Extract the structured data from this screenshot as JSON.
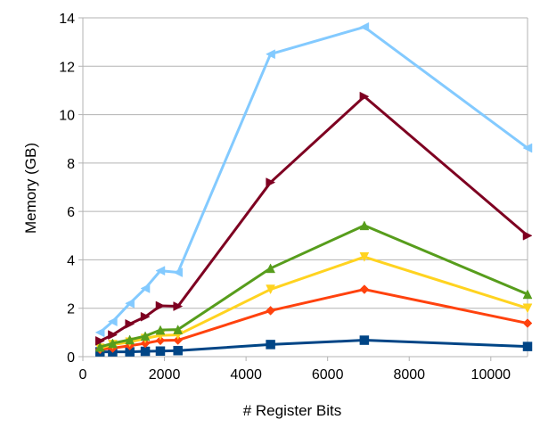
{
  "chart_data": {
    "type": "line",
    "title": "",
    "xlabel": "# Register Bits",
    "ylabel": "Memory (GB)",
    "xlim": [
      0,
      10900
    ],
    "ylim": [
      0,
      14
    ],
    "x_ticks": [
      0,
      2000,
      4000,
      6000,
      8000,
      10000
    ],
    "y_ticks": [
      0,
      2,
      4,
      6,
      8,
      10,
      12,
      14
    ],
    "x_tick_labels": [
      "0",
      "2000",
      "4000",
      "6000",
      "8000",
      "10000"
    ],
    "y_tick_labels": [
      "0",
      "2",
      "4",
      "6",
      "8",
      "10",
      "12",
      "14"
    ],
    "grid": "horizontal",
    "legend": "none",
    "x": [
      420,
      730,
      1150,
      1530,
      1900,
      2330,
      4600,
      6900,
      10900
    ],
    "series": [
      {
        "color": "#004586",
        "marker": "square",
        "values": [
          0.2,
          0.2,
          0.2,
          0.22,
          0.23,
          0.25,
          0.5,
          0.68,
          0.42
        ]
      },
      {
        "color": "#ff420e",
        "marker": "diamond",
        "values": [
          0.3,
          0.35,
          0.45,
          0.55,
          0.67,
          0.68,
          1.9,
          2.78,
          1.38
        ]
      },
      {
        "color": "#ffd320",
        "marker": "triangle-down",
        "values": [
          0.35,
          0.5,
          0.6,
          0.75,
          0.88,
          0.9,
          2.78,
          4.12,
          2.0
        ]
      },
      {
        "color": "#579d1c",
        "marker": "triangle-up",
        "values": [
          0.4,
          0.55,
          0.7,
          0.85,
          1.1,
          1.12,
          3.65,
          5.42,
          2.58
        ]
      },
      {
        "color": "#7e0021",
        "marker": "triangle-right",
        "values": [
          0.65,
          0.9,
          1.35,
          1.65,
          2.1,
          2.08,
          7.2,
          10.75,
          5.0
        ]
      },
      {
        "color": "#83caff",
        "marker": "triangle-left",
        "values": [
          1.0,
          1.45,
          2.2,
          2.82,
          3.55,
          3.48,
          12.5,
          13.62,
          8.62
        ]
      }
    ]
  }
}
